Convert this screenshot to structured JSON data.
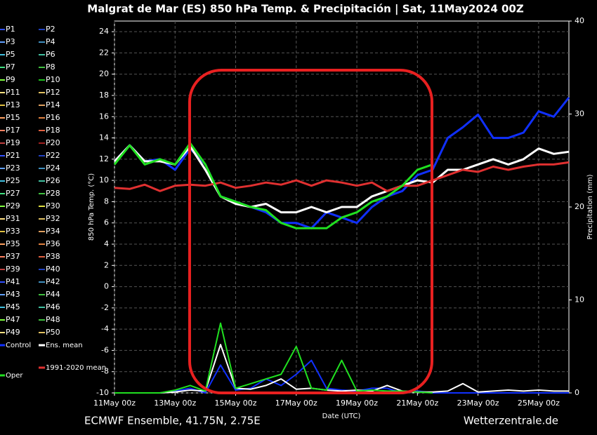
{
  "chart_data": {
    "type": "line",
    "title": "Malgrat de Mar  (ES)  850 hPa Temp. & Precipitación | Sat, 11May2024 00Z",
    "subtitle": "ECMWF Ensemble, 41.75N, 2.75E",
    "source": "Wetterzentrale.de",
    "x_label": "Date (UTC)",
    "y_label": "850 hPa Temp. (°C)",
    "y2_label": "Precipitation (mm)",
    "xlim": [
      0,
      360
    ],
    "xticks": [
      {
        "value": 0,
        "label": "11May 00z"
      },
      {
        "value": 48,
        "label": "13May 00z"
      },
      {
        "value": 96,
        "label": "15May 00z"
      },
      {
        "value": 144,
        "label": "17May 00z"
      },
      {
        "value": 192,
        "label": "19May 00z"
      },
      {
        "value": 240,
        "label": "21May 00z"
      },
      {
        "value": 288,
        "label": "23May 00z"
      },
      {
        "value": 336,
        "label": "25May 00z"
      }
    ],
    "ylim": [
      -10,
      25
    ],
    "yticks": [
      -10,
      -8,
      -6,
      -4,
      -2,
      0,
      2,
      4,
      6,
      8,
      10,
      12,
      14,
      16,
      18,
      20,
      22,
      24
    ],
    "y2lim": [
      0,
      40
    ],
    "y2ticks": [
      0,
      10,
      20,
      30,
      40
    ],
    "grid": true,
    "x": [
      0,
      12,
      24,
      36,
      48,
      60,
      72,
      84,
      96,
      108,
      120,
      132,
      144,
      156,
      168,
      180,
      192,
      204,
      216,
      228,
      240,
      252,
      264,
      276,
      288,
      300,
      312,
      324,
      336,
      348,
      360
    ],
    "members": [
      {
        "name": "P1",
        "color": "#3050ff"
      },
      {
        "name": "P2",
        "color": "#2040c0"
      },
      {
        "name": "P3",
        "color": "#60a0ff"
      },
      {
        "name": "P4",
        "color": "#4090c0"
      },
      {
        "name": "P5",
        "color": "#40c0e0"
      },
      {
        "name": "P6",
        "color": "#40c0a0"
      },
      {
        "name": "P7",
        "color": "#40e080"
      },
      {
        "name": "P8",
        "color": "#40c040"
      },
      {
        "name": "P9",
        "color": "#80ff40"
      },
      {
        "name": "P10",
        "color": "#20c020"
      },
      {
        "name": "P11",
        "color": "#ffe080"
      },
      {
        "name": "P12",
        "color": "#e0c060"
      },
      {
        "name": "P13",
        "color": "#e0c040"
      },
      {
        "name": "P14",
        "color": "#e0a060"
      },
      {
        "name": "P15",
        "color": "#ffa060"
      },
      {
        "name": "P16",
        "color": "#e08040"
      },
      {
        "name": "P17",
        "color": "#ff8060"
      },
      {
        "name": "P18",
        "color": "#e06040"
      },
      {
        "name": "P19",
        "color": "#c04040"
      },
      {
        "name": "P20",
        "color": "#a02020"
      },
      {
        "name": "P21",
        "color": "#3050ff"
      },
      {
        "name": "P22",
        "color": "#2040c0"
      },
      {
        "name": "P23",
        "color": "#60a0ff"
      },
      {
        "name": "P24",
        "color": "#4090c0"
      },
      {
        "name": "P25",
        "color": "#40c0e0"
      },
      {
        "name": "P26",
        "color": "#40c0a0"
      },
      {
        "name": "P27",
        "color": "#40e080"
      },
      {
        "name": "P28",
        "color": "#40c040"
      },
      {
        "name": "P29",
        "color": "#80ff40"
      },
      {
        "name": "P30",
        "color": "#e0e040"
      },
      {
        "name": "P31",
        "color": "#ffe080"
      },
      {
        "name": "P32",
        "color": "#e0c060"
      },
      {
        "name": "P33",
        "color": "#e0c040"
      },
      {
        "name": "P34",
        "color": "#e0a060"
      },
      {
        "name": "P35",
        "color": "#ffa060"
      },
      {
        "name": "P36",
        "color": "#e08040"
      },
      {
        "name": "P37",
        "color": "#ff8060"
      },
      {
        "name": "P38",
        "color": "#e06040"
      },
      {
        "name": "P39",
        "color": "#c04040"
      },
      {
        "name": "P40",
        "color": "#2040c0"
      },
      {
        "name": "P41",
        "color": "#3050ff"
      },
      {
        "name": "P42",
        "color": "#4090c0"
      },
      {
        "name": "P43",
        "color": "#60a0ff"
      },
      {
        "name": "P44",
        "color": "#40c040"
      },
      {
        "name": "P45",
        "color": "#40c0e0"
      },
      {
        "name": "P46",
        "color": "#40c0a0"
      },
      {
        "name": "P47",
        "color": "#80ff40"
      },
      {
        "name": "P48",
        "color": "#40c040"
      },
      {
        "name": "P49",
        "color": "#ffe080"
      },
      {
        "name": "P50",
        "color": "#e0c060"
      }
    ],
    "series": [
      {
        "name": "Control",
        "color": "#1030ff",
        "values": [
          11.8,
          13.3,
          11.8,
          12,
          11,
          13,
          11.5,
          8.5,
          8,
          7.5,
          7,
          6,
          6,
          5.5,
          7,
          6.5,
          6,
          7.5,
          8.5,
          9,
          10.5,
          11,
          14,
          15,
          16.2,
          14,
          14,
          14.5,
          16.5,
          16,
          17.8
        ],
        "precipitation": [
          0,
          0,
          0,
          0,
          0.2,
          0.5,
          0,
          3,
          0.3,
          0.5,
          1.5,
          0.8,
          2,
          3.5,
          0.5,
          0.3,
          0.2,
          0.5,
          0.5,
          0,
          0.2,
          0,
          0,
          0,
          0,
          0,
          0,
          0,
          0,
          0,
          0
        ]
      },
      {
        "name": "Ens. mean",
        "color": "#ffffff",
        "values": [
          11.8,
          13.3,
          11.8,
          11.8,
          11.5,
          13.2,
          11,
          8.5,
          7.8,
          7.5,
          7.8,
          7,
          7,
          7.5,
          7,
          7.5,
          7.5,
          8.5,
          9,
          9.5,
          10,
          9.8,
          11,
          11,
          11.5,
          12,
          11.5,
          12,
          13,
          12.5,
          12.7
        ],
        "precipitation": [
          0,
          0,
          0,
          0,
          0.1,
          0.3,
          0.2,
          5.2,
          0.5,
          0.4,
          0.8,
          1.5,
          0.4,
          0.5,
          0.3,
          0.2,
          0.3,
          0.2,
          0.8,
          0.2,
          0.1,
          0.1,
          0.2,
          1,
          0.1,
          0.2,
          0.3,
          0.2,
          0.3,
          0.2,
          0.2
        ]
      },
      {
        "name": "1991-2020 mean",
        "color": "#e03030",
        "values": [
          9.3,
          9.2,
          9.6,
          9.0,
          9.5,
          9.6,
          9.5,
          9.8,
          9.3,
          9.5,
          9.8,
          9.6,
          10,
          9.5,
          10,
          9.8,
          9.5,
          9.8,
          9,
          9.5,
          9.5,
          10,
          10.5,
          11,
          10.8,
          11.3,
          11,
          11.3,
          11.5,
          11.5,
          11.7
        ]
      },
      {
        "name": "Oper",
        "color": "#20e020",
        "values": [
          11.5,
          13.3,
          11.5,
          12,
          11.5,
          13.5,
          11.5,
          8.5,
          8,
          7.5,
          7.2,
          6,
          5.5,
          5.5,
          5.5,
          6.5,
          7,
          8,
          8.5,
          9.5,
          11,
          11.5,
          null,
          null,
          null,
          null,
          null,
          null,
          null,
          null,
          null
        ],
        "precipitation": [
          0,
          0,
          0,
          0,
          0.3,
          0.8,
          0.2,
          7.5,
          0.5,
          1,
          1.5,
          2,
          5,
          0.5,
          0.3,
          3.5,
          0.2,
          0.3,
          0.2,
          0.2,
          0.1,
          0,
          null,
          null,
          null,
          null,
          null,
          null,
          null,
          null,
          null
        ]
      }
    ]
  }
}
